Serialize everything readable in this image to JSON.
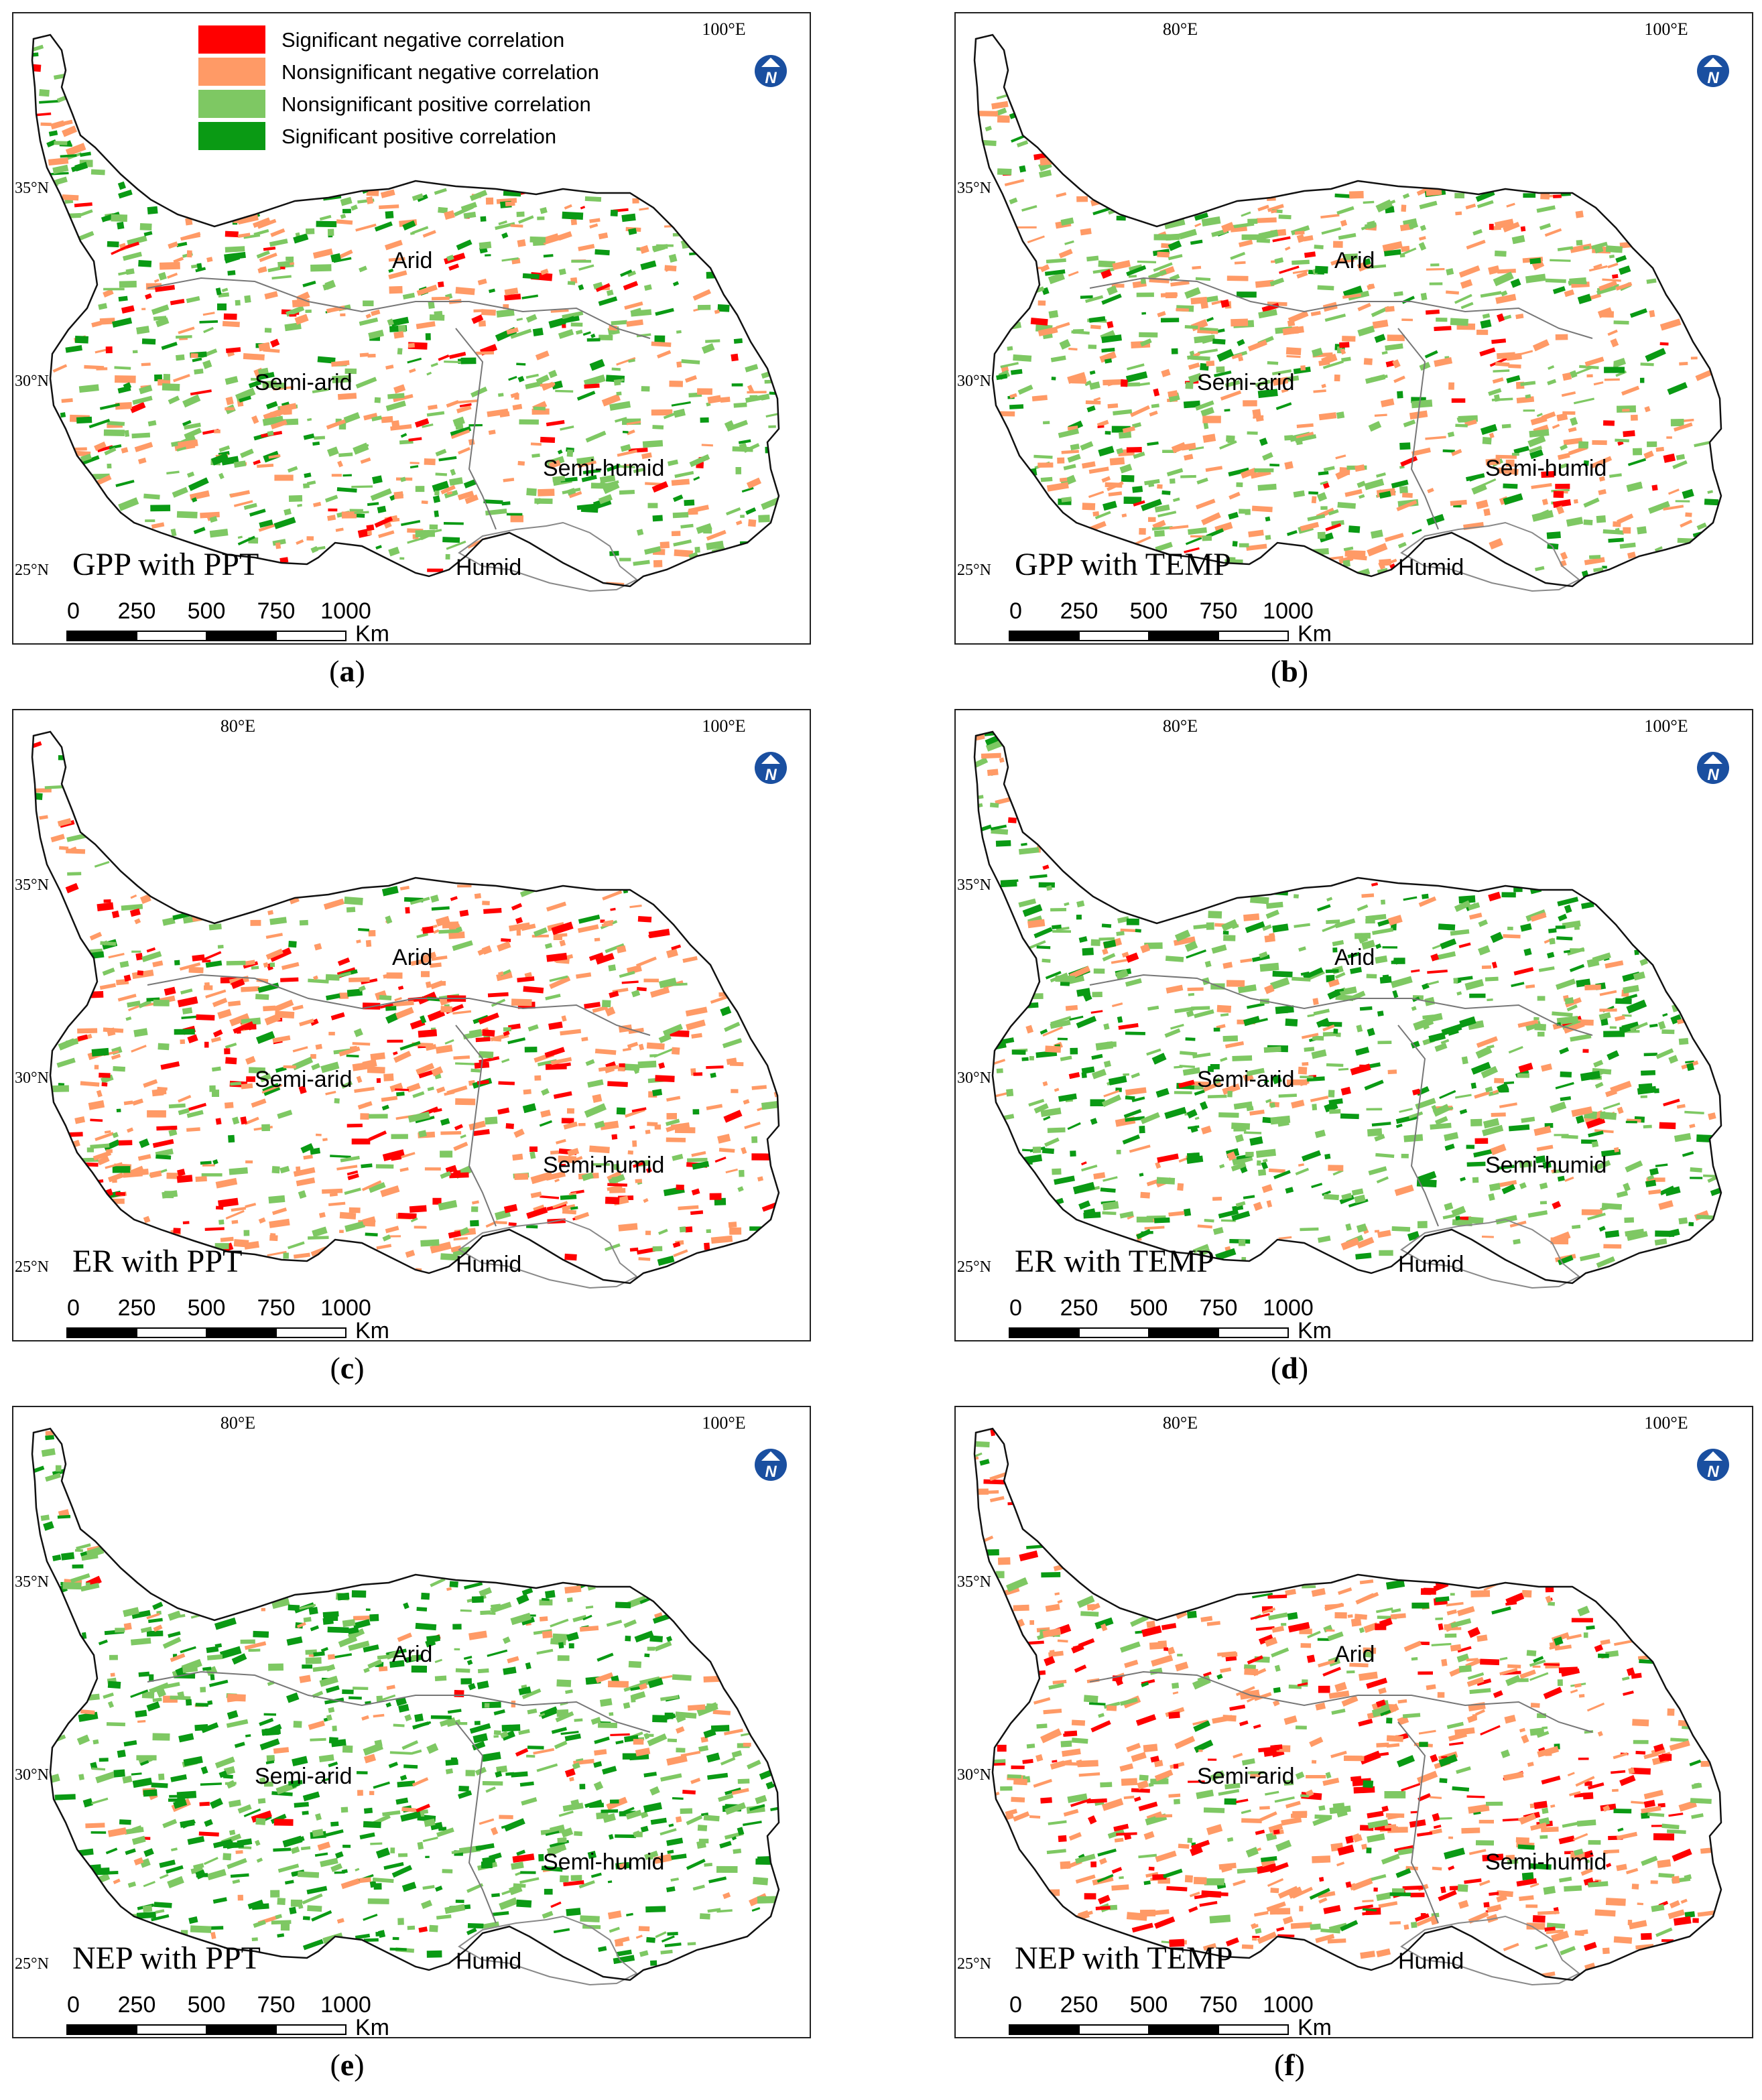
{
  "legend": {
    "items": [
      {
        "label": "Significant negative correlation",
        "color": "#ff0000"
      },
      {
        "label": "Nonsignificant negative correlation",
        "color": "#ff9a66"
      },
      {
        "label": "Nonsignificant positive correlation",
        "color": "#7ec863"
      },
      {
        "label": "Significant positive correlation",
        "color": "#0a9a14"
      }
    ]
  },
  "axes": {
    "lon_labels": [
      "80°E",
      "100°E"
    ],
    "lat_labels": [
      "35°N",
      "30°N",
      "25°N"
    ]
  },
  "zones": [
    "Arid",
    "Semi-arid",
    "Semi-humid",
    "Humid"
  ],
  "scale_bar": {
    "ticks": [
      "0",
      "250",
      "500",
      "750",
      "1000"
    ],
    "unit": "Km"
  },
  "north_arrow": {
    "letter": "N",
    "color": "#1a4fa0"
  },
  "panels": [
    {
      "title": "GPP with PPT",
      "caption_letter": "a",
      "palette": [
        0.06,
        0.3,
        0.4,
        0.24
      ]
    },
    {
      "title": "GPP with TEMP",
      "caption_letter": "b",
      "palette": [
        0.06,
        0.38,
        0.44,
        0.12
      ]
    },
    {
      "title": "ER with PPT",
      "caption_letter": "c",
      "palette": [
        0.22,
        0.46,
        0.22,
        0.1
      ]
    },
    {
      "title": "ER with TEMP",
      "caption_letter": "d",
      "palette": [
        0.03,
        0.18,
        0.44,
        0.35
      ]
    },
    {
      "title": "NEP with PPT",
      "caption_letter": "e",
      "palette": [
        0.02,
        0.12,
        0.4,
        0.46
      ]
    },
    {
      "title": "NEP with TEMP",
      "caption_letter": "f",
      "palette": [
        0.24,
        0.46,
        0.22,
        0.08
      ]
    }
  ]
}
